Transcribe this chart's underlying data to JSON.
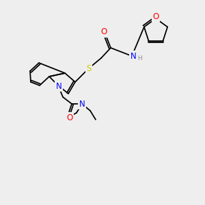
{
  "bg_color": "#eeeeee",
  "bond_color": "#000000",
  "atom_colors": {
    "O": "#ff0000",
    "N": "#0000ff",
    "S": "#cccc00",
    "H": "#888888"
  },
  "font_size": 7.5,
  "lw": 1.3
}
